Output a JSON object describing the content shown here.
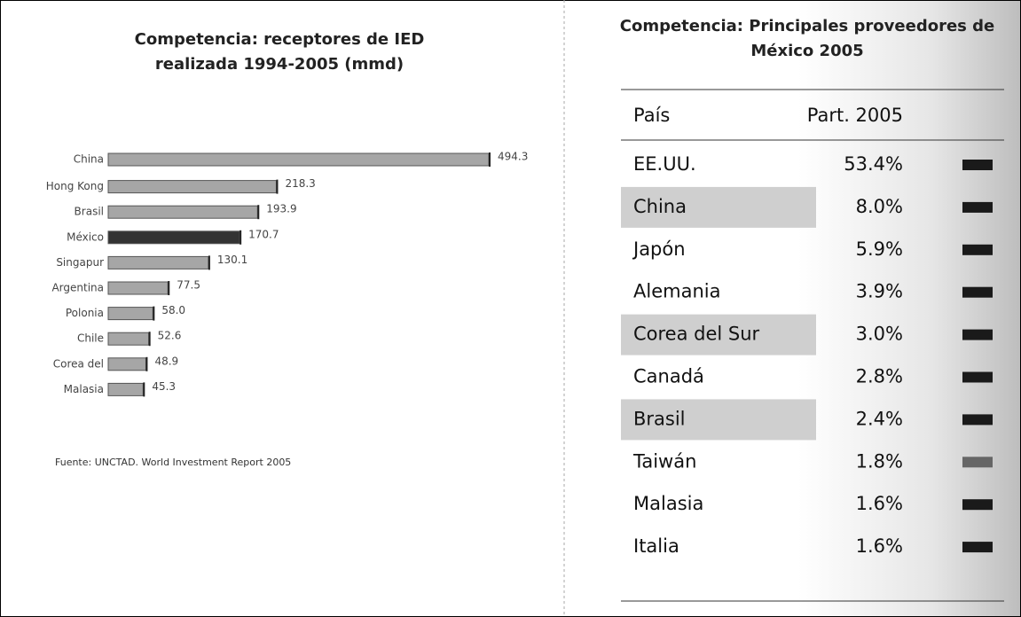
{
  "chart_data": {
    "type": "bar",
    "orientation": "horizontal",
    "title": [
      "Competencia: receptores de IED",
      "realizada 1994-2005 (mmd)"
    ],
    "categories": [
      "China",
      "Hong Kong",
      "Brasil",
      "México",
      "Singapur",
      "Argentina",
      "Polonia",
      "Chile",
      "Corea del",
      "Malasia"
    ],
    "values": [
      494.3,
      218.3,
      193.9,
      170.7,
      130.1,
      77.5,
      58.0,
      52.6,
      48.9,
      45.3
    ],
    "value_labels": [
      "494.3",
      "218.3",
      "193.9",
      "170.7",
      "130.1",
      "77.5",
      "58.0",
      "52.6",
      "48.9",
      "45.3"
    ],
    "colors": [
      "#a6a6a6",
      "#a6a6a6",
      "#a6a6a6",
      "#333333",
      "#a6a6a6",
      "#a6a6a6",
      "#a6a6a6",
      "#a6a6a6",
      "#a6a6a6",
      "#a6a6a6"
    ],
    "source": "Fuente: UNCTAD. World Investment Report 2005"
  },
  "table": {
    "title": [
      "Competencia: Principales proveedores de",
      "México 2005"
    ],
    "header": [
      "País",
      "Part. 2005"
    ],
    "rows": [
      [
        "EE.UU.",
        "53.4%"
      ],
      [
        "China",
        "8.0%"
      ],
      [
        "Japón",
        "5.9%"
      ],
      [
        "Alemania",
        "3.9%"
      ],
      [
        "Corea del Sur",
        "3.0%"
      ],
      [
        "Canadá",
        "2.8%"
      ],
      [
        "Brasil",
        "2.4%"
      ],
      [
        "Taiwán",
        "1.8%"
      ],
      [
        "Malasia",
        "1.6%"
      ],
      [
        "Italia",
        "1.6%"
      ]
    ]
  }
}
